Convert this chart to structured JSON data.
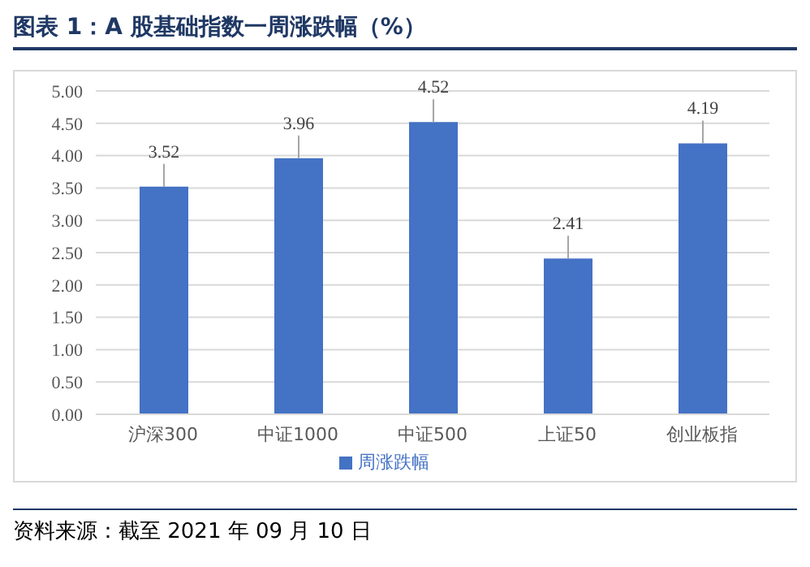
{
  "chart_data": {
    "type": "bar",
    "title": "图表 1：A 股基础指数一周涨跌幅（%）",
    "categories": [
      "沪深300",
      "中证1000",
      "中证500",
      "上证50",
      "创业板指"
    ],
    "series": [
      {
        "name": "周涨跌幅",
        "color": "#4472c4",
        "values": [
          3.52,
          3.96,
          4.52,
          2.41,
          4.19
        ]
      }
    ],
    "ylim": [
      0,
      5
    ],
    "yticks": [
      {
        "value": 0,
        "label": "0.00"
      },
      {
        "value": 0.5,
        "label": "0.50"
      },
      {
        "value": 1,
        "label": "1.00"
      },
      {
        "value": 1.5,
        "label": "1.50"
      },
      {
        "value": 2,
        "label": "2.00"
      },
      {
        "value": 2.5,
        "label": "2.50"
      },
      {
        "value": 3,
        "label": "3.00"
      },
      {
        "value": 3.5,
        "label": "3.50"
      },
      {
        "value": 4,
        "label": "4.00"
      },
      {
        "value": 4.5,
        "label": "4.50"
      },
      {
        "value": 5,
        "label": "5.00"
      }
    ],
    "grid": "y",
    "legend": "bottom",
    "data_labels": true,
    "annotations": [
      "资料来源：截至 2021 年 09 月 10 日"
    ]
  }
}
